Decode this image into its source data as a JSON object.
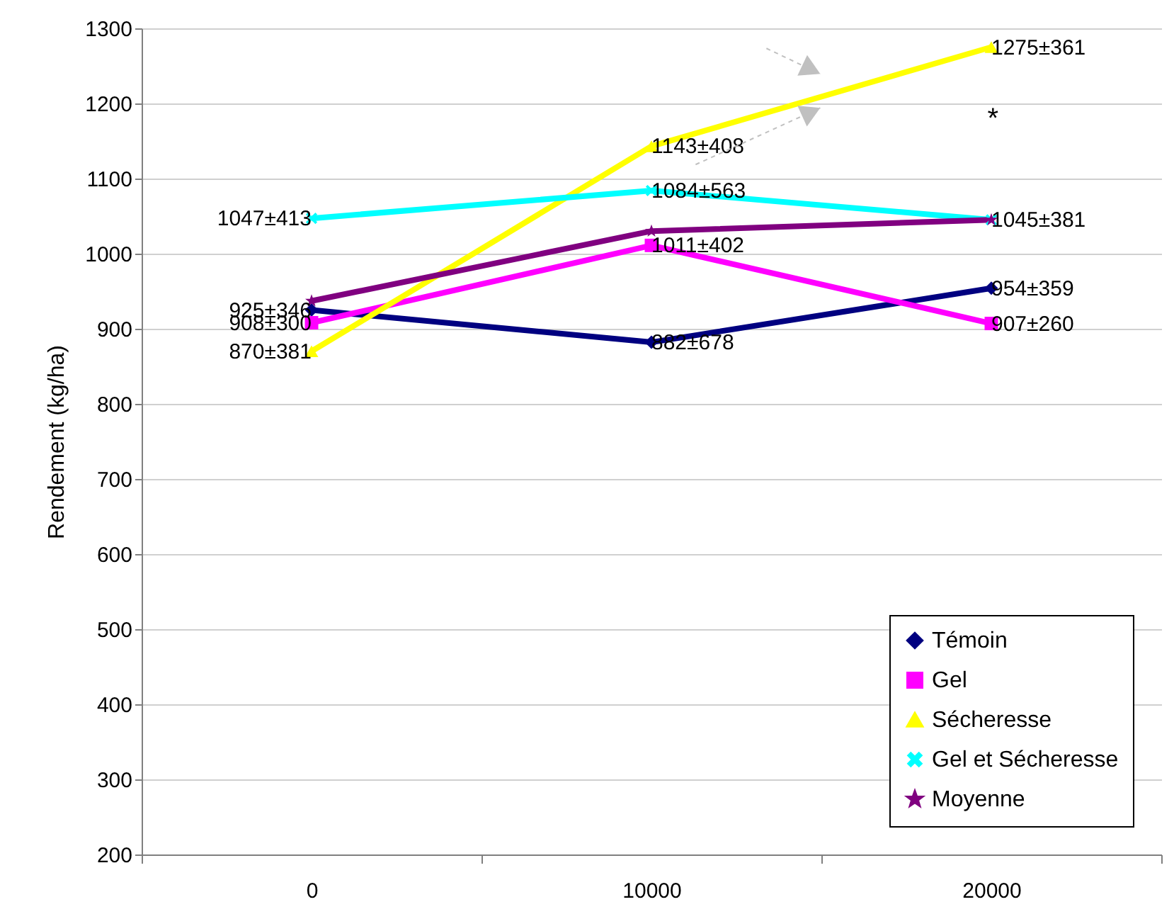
{
  "chart_data": {
    "type": "line",
    "ylabel": "Rendement (kg/ha)",
    "categories": [
      "0",
      "10000",
      "20000"
    ],
    "ylim": [
      200,
      1300
    ],
    "yticks": [
      200,
      300,
      400,
      500,
      600,
      700,
      800,
      900,
      1000,
      1100,
      1200,
      1300
    ],
    "grid": "y",
    "legend": "bottom right",
    "series": [
      {
        "name": "Témoin",
        "color": "#000080",
        "marker": "diamond",
        "values": [
          925,
          882,
          954
        ],
        "value_labels": [
          "925±346",
          "882±678",
          "954±359"
        ]
      },
      {
        "name": "Gel",
        "color": "#ff00ff",
        "marker": "square",
        "values": [
          908,
          1011,
          907
        ],
        "value_labels": [
          "908±300",
          "1011±402",
          "907±260"
        ]
      },
      {
        "name": "Sécheresse",
        "color": "#ffff00",
        "marker": "triangle",
        "values": [
          870,
          1143,
          1275
        ],
        "value_labels": [
          "870±381",
          "1143±408",
          "1275±361"
        ]
      },
      {
        "name": "Gel et Sécheresse",
        "color": "#00ffff",
        "marker": "cross",
        "values": [
          1047,
          1084,
          1045
        ],
        "value_labels": [
          "1047±413",
          "1084±563",
          "1045±381"
        ]
      },
      {
        "name": "Moyenne",
        "color": "#800080",
        "marker": "star",
        "values": [
          937,
          1030,
          1045
        ]
      }
    ],
    "annotations": [
      "*"
    ]
  }
}
